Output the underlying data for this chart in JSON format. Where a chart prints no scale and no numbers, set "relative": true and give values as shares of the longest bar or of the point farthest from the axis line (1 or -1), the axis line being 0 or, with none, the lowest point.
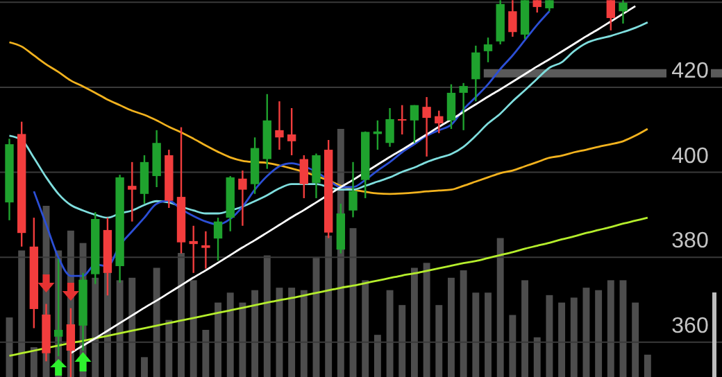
{
  "chart_data": [
    {
      "type": "candlestick",
      "categories": [
        null,
        null,
        null,
        null,
        null,
        null,
        null,
        null,
        null,
        null,
        null,
        null,
        null,
        null,
        null,
        null,
        null,
        null,
        null,
        null,
        null,
        null,
        null,
        null,
        null,
        null,
        null,
        null,
        null,
        null,
        null,
        null,
        null,
        null,
        null,
        null,
        null,
        null,
        null,
        null,
        null,
        null,
        null,
        null,
        null,
        null,
        null,
        null,
        null,
        null,
        null,
        null,
        null
      ],
      "ohlc": [
        [
          392.9,
          407.9,
          388.7,
          406.6
        ],
        [
          409.0,
          411.9,
          382.5,
          385.7
        ],
        [
          382.5,
          389.3,
          363.3,
          367.8
        ],
        [
          366.5,
          369.0,
          355.5,
          357.4
        ],
        [
          361.3,
          379.6,
          356.7,
          362.9
        ],
        [
          364.2,
          368.0,
          351.8,
          358.0
        ],
        [
          363.9,
          376.3,
          358.0,
          374.7
        ],
        [
          376.0,
          390.6,
          373.7,
          389.0
        ],
        [
          386.4,
          389.3,
          371.0,
          376.3
        ],
        [
          377.9,
          399.4,
          374.0,
          398.8
        ],
        [
          396.8,
          402.4,
          388.4,
          395.9
        ],
        [
          394.9,
          404.0,
          392.6,
          402.4
        ],
        [
          399.1,
          409.9,
          396.5,
          406.9
        ],
        [
          404.0,
          405.3,
          391.6,
          393.3
        ],
        [
          394.2,
          410.6,
          380.9,
          383.5
        ],
        [
          383.8,
          387.4,
          376.3,
          383.1
        ],
        [
          382.8,
          386.1,
          377.3,
          382.2
        ],
        [
          384.4,
          389.3,
          379.2,
          388.4
        ],
        [
          389.3,
          399.1,
          386.1,
          398.8
        ],
        [
          398.5,
          400.4,
          387.4,
          395.9
        ],
        [
          397.2,
          408.2,
          394.9,
          405.7
        ],
        [
          403.1,
          418.4,
          400.8,
          412.2
        ],
        [
          409.9,
          416.7,
          405.3,
          408.2
        ],
        [
          408.9,
          415.1,
          404.0,
          407.3
        ],
        [
          403.1,
          404.0,
          393.9,
          397.2
        ],
        [
          397.5,
          404.4,
          393.9,
          404.0
        ],
        [
          405.3,
          407.6,
          384.5,
          385.8
        ],
        [
          381.8,
          392.6,
          380.9,
          390.3
        ],
        [
          391.0,
          402.4,
          389.4,
          395.6
        ],
        [
          398.2,
          409.6,
          393.9,
          409.5
        ],
        [
          409.0,
          412.2,
          405.3,
          409.6
        ],
        [
          406.9,
          415.1,
          406.0,
          412.5
        ],
        [
          412.5,
          415.8,
          408.9,
          412.2
        ],
        [
          412.2,
          415.8,
          406.9,
          415.8
        ],
        [
          415.4,
          417.7,
          403.7,
          412.8
        ],
        [
          413.2,
          414.5,
          409.2,
          411.5
        ],
        [
          412.2,
          420.7,
          410.2,
          418.7
        ],
        [
          418.7,
          421.0,
          409.9,
          420.3
        ],
        [
          421.9,
          429.8,
          416.7,
          428.2
        ],
        [
          428.5,
          431.7,
          425.9,
          430.1
        ],
        [
          430.8,
          440.5,
          430.1,
          439.6
        ],
        [
          437.9,
          440.5,
          431.9,
          433.0
        ],
        [
          432.4,
          440.5,
          431.4,
          440.5
        ],
        [
          440.5,
          440.5,
          437.6,
          438.9
        ],
        [
          438.6,
          440.5,
          437.9,
          440.5
        ],
        null,
        null,
        null,
        null,
        [
          440.5,
          440.5,
          433.4,
          436.3
        ],
        [
          437.9,
          440.5,
          435.0,
          439.9
        ],
        null,
        null
      ],
      "colors": [
        "#1fa22e",
        "#f23d3d",
        "#f23d3d",
        "#f23d3d",
        "#1fa22e",
        "#f23d3d",
        "#1fa22e",
        "#1fa22e",
        "#f23d3d",
        "#1fa22e",
        "#f23d3d",
        "#1fa22e",
        "#1fa22e",
        "#f23d3d",
        "#f23d3d",
        "#f23d3d",
        "#f23d3d",
        "#1fa22e",
        "#1fa22e",
        "#f23d3d",
        "#1fa22e",
        "#1fa22e",
        "#f23d3d",
        "#f23d3d",
        "#f23d3d",
        "#1fa22e",
        "#f23d3d",
        "#1fa22e",
        "#1fa22e",
        "#1fa22e",
        "#1fa22e",
        "#1fa22e",
        "#f23d3d",
        "#1fa22e",
        "#f23d3d",
        "#f23d3d",
        "#1fa22e",
        "#1fa22e",
        "#1fa22e",
        "#1fa22e",
        "#1fa22e",
        "#f23d3d",
        "#1fa22e",
        "#f23d3d",
        "#1fa22e",
        null,
        null,
        null,
        null,
        "#f23d3d",
        "#1fa22e",
        null,
        null
      ],
      "series": [
        {
          "type": "line",
          "color": "#b5ee2c",
          "values": [
            356.8,
            357.4,
            358.0,
            358.6,
            359.2,
            359.8,
            360.3,
            360.9,
            361.5,
            362.1,
            362.7,
            363.3,
            363.9,
            364.5,
            365.1,
            365.7,
            366.3,
            366.9,
            367.5,
            368.1,
            368.7,
            369.3,
            369.9,
            370.4,
            371.0,
            371.6,
            372.2,
            372.8,
            373.3,
            373.9,
            374.5,
            375.1,
            375.7,
            376.2,
            376.8,
            377.4,
            378.0,
            378.6,
            379.1,
            379.8,
            380.5,
            381.2,
            382.0,
            382.7,
            383.4,
            384.2,
            384.9,
            385.7,
            386.4,
            387.1,
            387.9,
            388.6,
            389.3
          ]
        },
        {
          "type": "line",
          "color": "#f2b21e",
          "values": [
            430.6,
            429.6,
            427.5,
            425.4,
            423.6,
            421.6,
            420.2,
            418.7,
            417.1,
            415.8,
            414.5,
            413.5,
            412.2,
            410.7,
            409.4,
            407.9,
            406.3,
            404.8,
            403.5,
            402.7,
            402.4,
            402.2,
            401.6,
            400.9,
            400.1,
            399.1,
            398.1,
            396.8,
            395.9,
            395.4,
            395.0,
            394.9,
            395.0,
            395.2,
            395.5,
            395.7,
            395.9,
            396.8,
            397.8,
            398.8,
            399.8,
            400.4,
            401.4,
            402.4,
            403.4,
            403.9,
            404.7,
            405.3,
            406.0,
            406.6,
            407.3,
            408.6,
            410.2
          ]
        },
        {
          "type": "line",
          "color": "#7fdede",
          "values": [
            408.6,
            407.6,
            403.4,
            398.8,
            394.9,
            392.3,
            391.0,
            390.0,
            389.3,
            390.3,
            391.0,
            392.3,
            393.2,
            392.9,
            391.9,
            391.0,
            390.3,
            390.3,
            391.0,
            391.9,
            393.2,
            394.6,
            396.2,
            397.2,
            397.2,
            397.2,
            396.5,
            395.9,
            395.9,
            396.8,
            397.8,
            398.8,
            400.1,
            401.1,
            402.4,
            403.4,
            404.3,
            406.0,
            408.6,
            411.5,
            413.8,
            416.7,
            419.3,
            422.0,
            424.6,
            425.9,
            428.5,
            430.4,
            431.4,
            432.1,
            433.0,
            434.0,
            435.3
          ]
        },
        {
          "type": "line",
          "color": "#2c4fd6",
          "values": [
            null,
            null,
            395.5,
            387.7,
            379.9,
            375.6,
            375.6,
            378.3,
            377.9,
            382.8,
            386.1,
            389.3,
            392.6,
            393.3,
            391.3,
            389.7,
            388.4,
            387.7,
            389.0,
            391.9,
            395.9,
            399.1,
            401.4,
            402.1,
            401.4,
            400.1,
            398.2,
            396.5,
            396.5,
            398.2,
            400.4,
            402.4,
            404.7,
            406.6,
            408.6,
            409.9,
            411.2,
            414.8,
            417.7,
            420.7,
            424.3,
            427.5,
            431.1,
            434.7,
            437.9,
            null,
            null,
            null,
            null,
            null,
            null,
            null,
            null
          ]
        },
        {
          "type": "line",
          "color": "#ffffff",
          "values": [
            null,
            null,
            null,
            null,
            null,
            357.4,
            359.2,
            360.9,
            362.7,
            364.5,
            366.3,
            368.1,
            369.8,
            371.6,
            373.4,
            375.2,
            376.9,
            378.7,
            380.5,
            382.3,
            384.0,
            385.8,
            387.6,
            389.4,
            391.1,
            392.9,
            394.7,
            396.5,
            398.2,
            400.0,
            401.8,
            403.6,
            405.3,
            407.1,
            408.9,
            410.7,
            412.4,
            414.2,
            416.0,
            417.8,
            419.5,
            421.3,
            423.1,
            424.9,
            426.6,
            428.4,
            430.2,
            432.0,
            433.7,
            435.5,
            437.3,
            439.1,
            null
          ]
        }
      ],
      "ylim": [
        351.8,
        440.55
      ],
      "yticks": [
        360,
        380,
        400,
        420,
        {
          "value": 440,
          "label": null
        }
      ],
      "grid": "y",
      "tick_labels": "y",
      "ref_lines": [
        {
          "axis": "y",
          "value": 423.3,
          "color": "#5a5a5a"
        }
      ]
    },
    {
      "type": "bar",
      "relative": true,
      "color": "#4d4d4d",
      "categories": [
        null,
        null,
        null,
        null,
        null,
        null,
        null,
        null,
        null,
        null,
        null,
        null,
        null,
        null,
        null,
        null,
        null,
        null,
        null,
        null,
        null,
        null,
        null,
        null,
        null,
        null,
        null,
        null,
        null,
        null,
        null,
        null,
        null,
        null,
        null,
        null,
        null,
        null,
        null,
        null,
        null,
        null,
        null,
        null,
        null,
        null,
        null,
        null,
        null,
        null,
        null,
        null,
        null
      ],
      "values": [
        0.24,
        0.51,
        0.12,
        0.69,
        0.51,
        0.59,
        0.54,
        0.4,
        0.43,
        0.39,
        0.4,
        0.08,
        0.44,
        0.23,
        0.5,
        0.39,
        0.19,
        0.3,
        0.34,
        0.3,
        0.35,
        0.49,
        0.36,
        0.36,
        0.35,
        0.48,
        0.57,
        1,
        0.6,
        0.39,
        0.17,
        0.35,
        0.29,
        0.44,
        0.46,
        0.29,
        0.4,
        0.43,
        0.34,
        0.34,
        0.56,
        0.25,
        0.39,
        0.16,
        0.33,
        0.3,
        0.32,
        0.36,
        0.35,
        0.39,
        0.39,
        0.3,
        0.09
      ]
    }
  ]
}
